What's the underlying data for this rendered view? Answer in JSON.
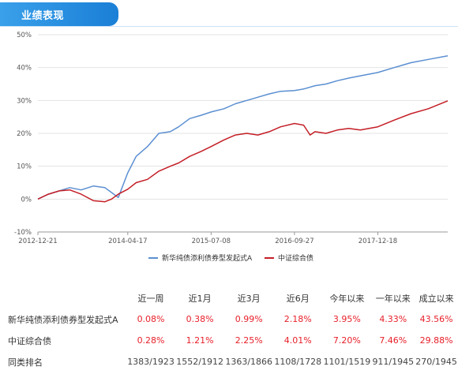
{
  "section": {
    "title": "业绩表现"
  },
  "chart_data": {
    "type": "line",
    "x_ticks": [
      "2012-12-21",
      "2014-04-17",
      "2015-07-08",
      "2016-09-27",
      "2017-12-18"
    ],
    "y_ticks": [
      "50%",
      "40%",
      "30%",
      "20%",
      "10%",
      "0%",
      "-10%"
    ],
    "ylim": [
      -10,
      50
    ],
    "xlim": [
      "2012-12-21",
      "2018-12-28"
    ],
    "grid": "horizontal",
    "legend_position": "bottom",
    "series": [
      {
        "name": "新华纯债添利债券型发起式A",
        "color": "#5b8fd1",
        "x": [
          "2012-12-21",
          "2013-02-15",
          "2013-04-15",
          "2013-06-10",
          "2013-08-10",
          "2013-10-15",
          "2013-12-15",
          "2014-01-20",
          "2014-02-25",
          "2014-04-17",
          "2014-06-01",
          "2014-08-01",
          "2014-10-01",
          "2014-12-01",
          "2015-01-15",
          "2015-03-15",
          "2015-05-15",
          "2015-07-08",
          "2015-09-15",
          "2015-11-15",
          "2016-01-15",
          "2016-03-15",
          "2016-05-15",
          "2016-07-15",
          "2016-09-27",
          "2016-11-15",
          "2017-01-15",
          "2017-03-15",
          "2017-05-15",
          "2017-07-15",
          "2017-09-15",
          "2017-12-18",
          "2018-03-15",
          "2018-06-15",
          "2018-09-15",
          "2018-12-28"
        ],
        "y": [
          0,
          1.5,
          2.5,
          3.5,
          2.8,
          4,
          3.5,
          2,
          0.5,
          8,
          13,
          16,
          20,
          20.5,
          22,
          24.5,
          25.5,
          26.5,
          27.5,
          29,
          30,
          31,
          32,
          32.8,
          33,
          33.5,
          34.5,
          35,
          36,
          36.8,
          37.5,
          38.5,
          40,
          41.5,
          42.5,
          43.56
        ]
      },
      {
        "name": "中证综合债",
        "color": "#c41e26",
        "x": [
          "2012-12-21",
          "2013-02-15",
          "2013-04-15",
          "2013-06-10",
          "2013-08-10",
          "2013-10-15",
          "2013-12-15",
          "2014-01-20",
          "2014-02-25",
          "2014-04-17",
          "2014-06-01",
          "2014-08-01",
          "2014-10-01",
          "2014-12-01",
          "2015-01-15",
          "2015-03-15",
          "2015-05-15",
          "2015-07-08",
          "2015-09-15",
          "2015-11-15",
          "2016-01-15",
          "2016-03-15",
          "2016-05-15",
          "2016-07-15",
          "2016-09-27",
          "2016-11-15",
          "2016-12-20",
          "2017-01-15",
          "2017-03-15",
          "2017-05-15",
          "2017-07-15",
          "2017-09-15",
          "2017-12-18",
          "2018-03-15",
          "2018-06-15",
          "2018-09-15",
          "2018-12-28"
        ],
        "y": [
          0,
          1.5,
          2.5,
          2.8,
          1.5,
          -0.5,
          -0.8,
          0,
          1.5,
          3,
          5,
          6,
          8.5,
          10,
          11,
          13,
          14.5,
          16,
          18,
          19.5,
          20,
          19.5,
          20.5,
          22,
          23,
          22.5,
          19.5,
          20.5,
          20,
          21,
          21.5,
          21,
          22,
          24,
          26,
          27.5,
          29.88
        ]
      }
    ]
  },
  "table": {
    "headers": [
      "",
      "近一周",
      "近1月",
      "近3月",
      "近6月",
      "今年以来",
      "一年以来",
      "成立以来"
    ],
    "rows": [
      {
        "name": "新华纯债添利债券型发起式A",
        "values": [
          "0.08%",
          "0.38%",
          "0.99%",
          "2.18%",
          "3.95%",
          "4.33%",
          "43.56%"
        ],
        "style": "red"
      },
      {
        "name": "中证综合债",
        "values": [
          "0.28%",
          "1.21%",
          "2.25%",
          "4.01%",
          "7.20%",
          "7.46%",
          "29.88%"
        ],
        "style": "red"
      },
      {
        "name": "同类排名",
        "values": [
          "1383/1923",
          "1552/1912",
          "1363/1866",
          "1108/1728",
          "1101/1519",
          "911/1945",
          "270/1945"
        ],
        "style": "gray"
      }
    ]
  }
}
